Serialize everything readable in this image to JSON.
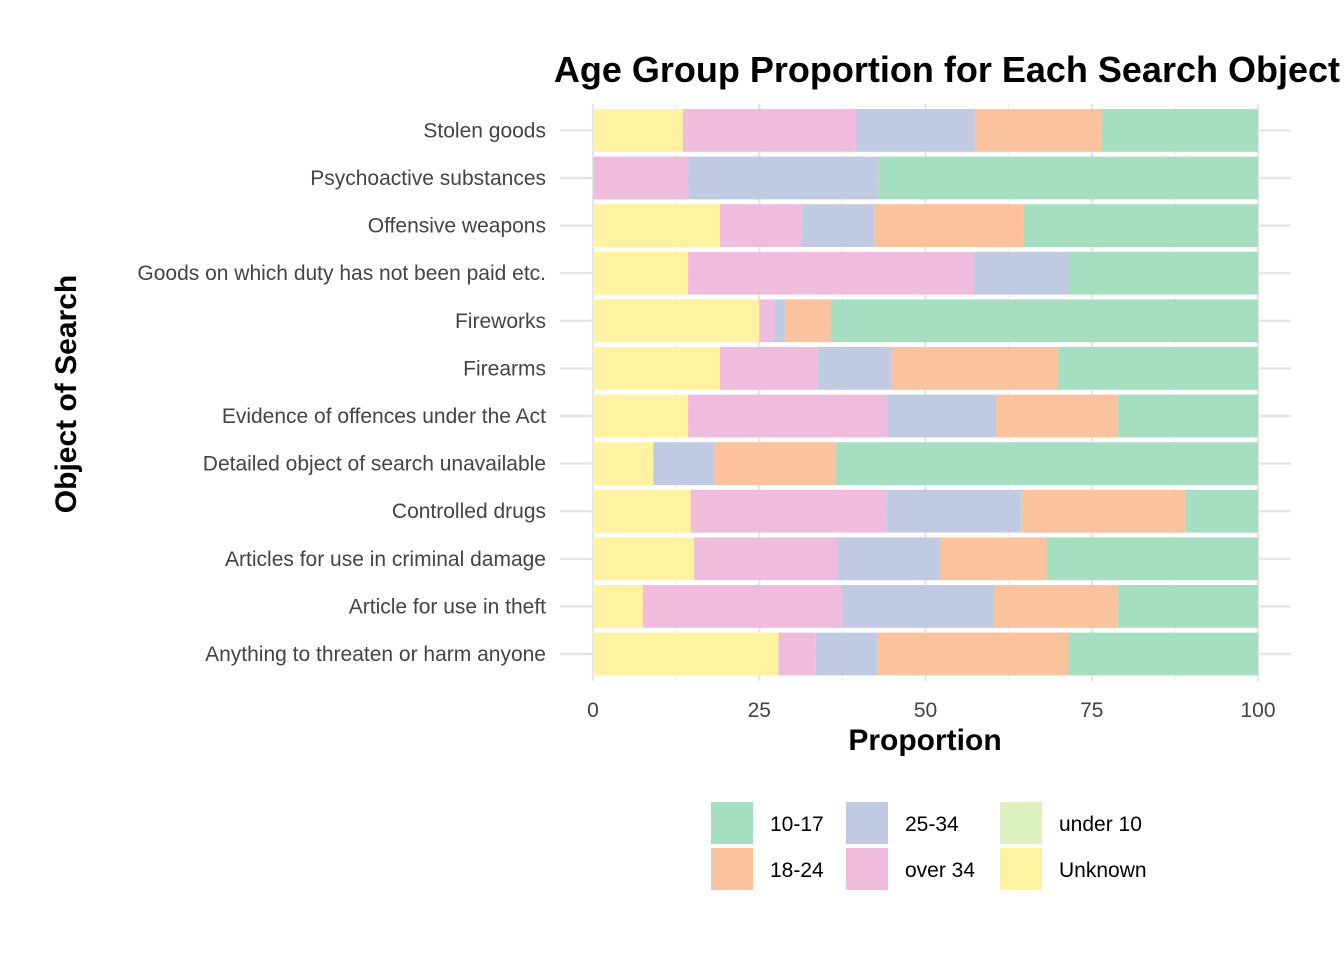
{
  "chart_data": {
    "type": "bar",
    "orientation": "horizontal",
    "stacked": true,
    "title": "Age Group Proportion for Each Search Object",
    "xlabel": "Proportion",
    "ylabel": "Object of Search",
    "xlim": [
      0,
      100
    ],
    "xticks": [
      "0",
      "25",
      "50",
      "75",
      "100"
    ],
    "grid": true,
    "legend_position": "bottom",
    "categories": [
      "Stolen goods",
      "Psychoactive substances",
      "Offensive weapons",
      "Goods on which duty has not been paid etc.",
      "Fireworks",
      "Firearms",
      "Evidence of offences under the Act",
      "Detailed object of search unavailable",
      "Controlled drugs",
      "Articles for use in criminal damage",
      "Article for use in theft",
      "Anything to threaten or harm anyone"
    ],
    "series": [
      {
        "name": "Unknown",
        "color": "#FFF2A0",
        "values": [
          13.5,
          0,
          19.1,
          14.3,
          25.0,
          19.1,
          14.3,
          9.1,
          14.7,
          15.2,
          7.5,
          27.9
        ]
      },
      {
        "name": "under 10",
        "color": "#DDF2C0",
        "values": [
          0,
          0,
          0,
          0,
          0,
          0,
          0,
          0,
          0,
          0,
          0,
          0
        ]
      },
      {
        "name": "over 34",
        "color": "#F0BCDD",
        "values": [
          26.0,
          14.3,
          12.3,
          42.9,
          2.1,
          14.7,
          29.9,
          0,
          29.4,
          21.5,
          29.9,
          5.6
        ]
      },
      {
        "name": "25-34",
        "color": "#C0CAE2",
        "values": [
          17.9,
          28.6,
          10.9,
          14.3,
          1.7,
          11.0,
          16.4,
          9.1,
          20.3,
          15.4,
          22.9,
          9.2
        ]
      },
      {
        "name": "18-24",
        "color": "#FBC29E",
        "values": [
          19.0,
          0,
          22.4,
          0,
          6.9,
          25.0,
          18.3,
          18.2,
          24.6,
          16.1,
          18.6,
          28.8
        ]
      },
      {
        "name": "10-17",
        "color": "#A6DEC2",
        "values": [
          23.6,
          57.1,
          35.3,
          28.5,
          64.3,
          30.2,
          21.1,
          63.6,
          11.0,
          31.8,
          21.1,
          28.5
        ]
      }
    ],
    "legend": [
      {
        "name": "10-17",
        "color": "#A6DEC2"
      },
      {
        "name": "18-24",
        "color": "#FBC29E"
      },
      {
        "name": "25-34",
        "color": "#C0CAE2"
      },
      {
        "name": "over 34",
        "color": "#F0BCDD"
      },
      {
        "name": "under 10",
        "color": "#DDF2C0"
      },
      {
        "name": "Unknown",
        "color": "#FFF2A0"
      }
    ]
  }
}
